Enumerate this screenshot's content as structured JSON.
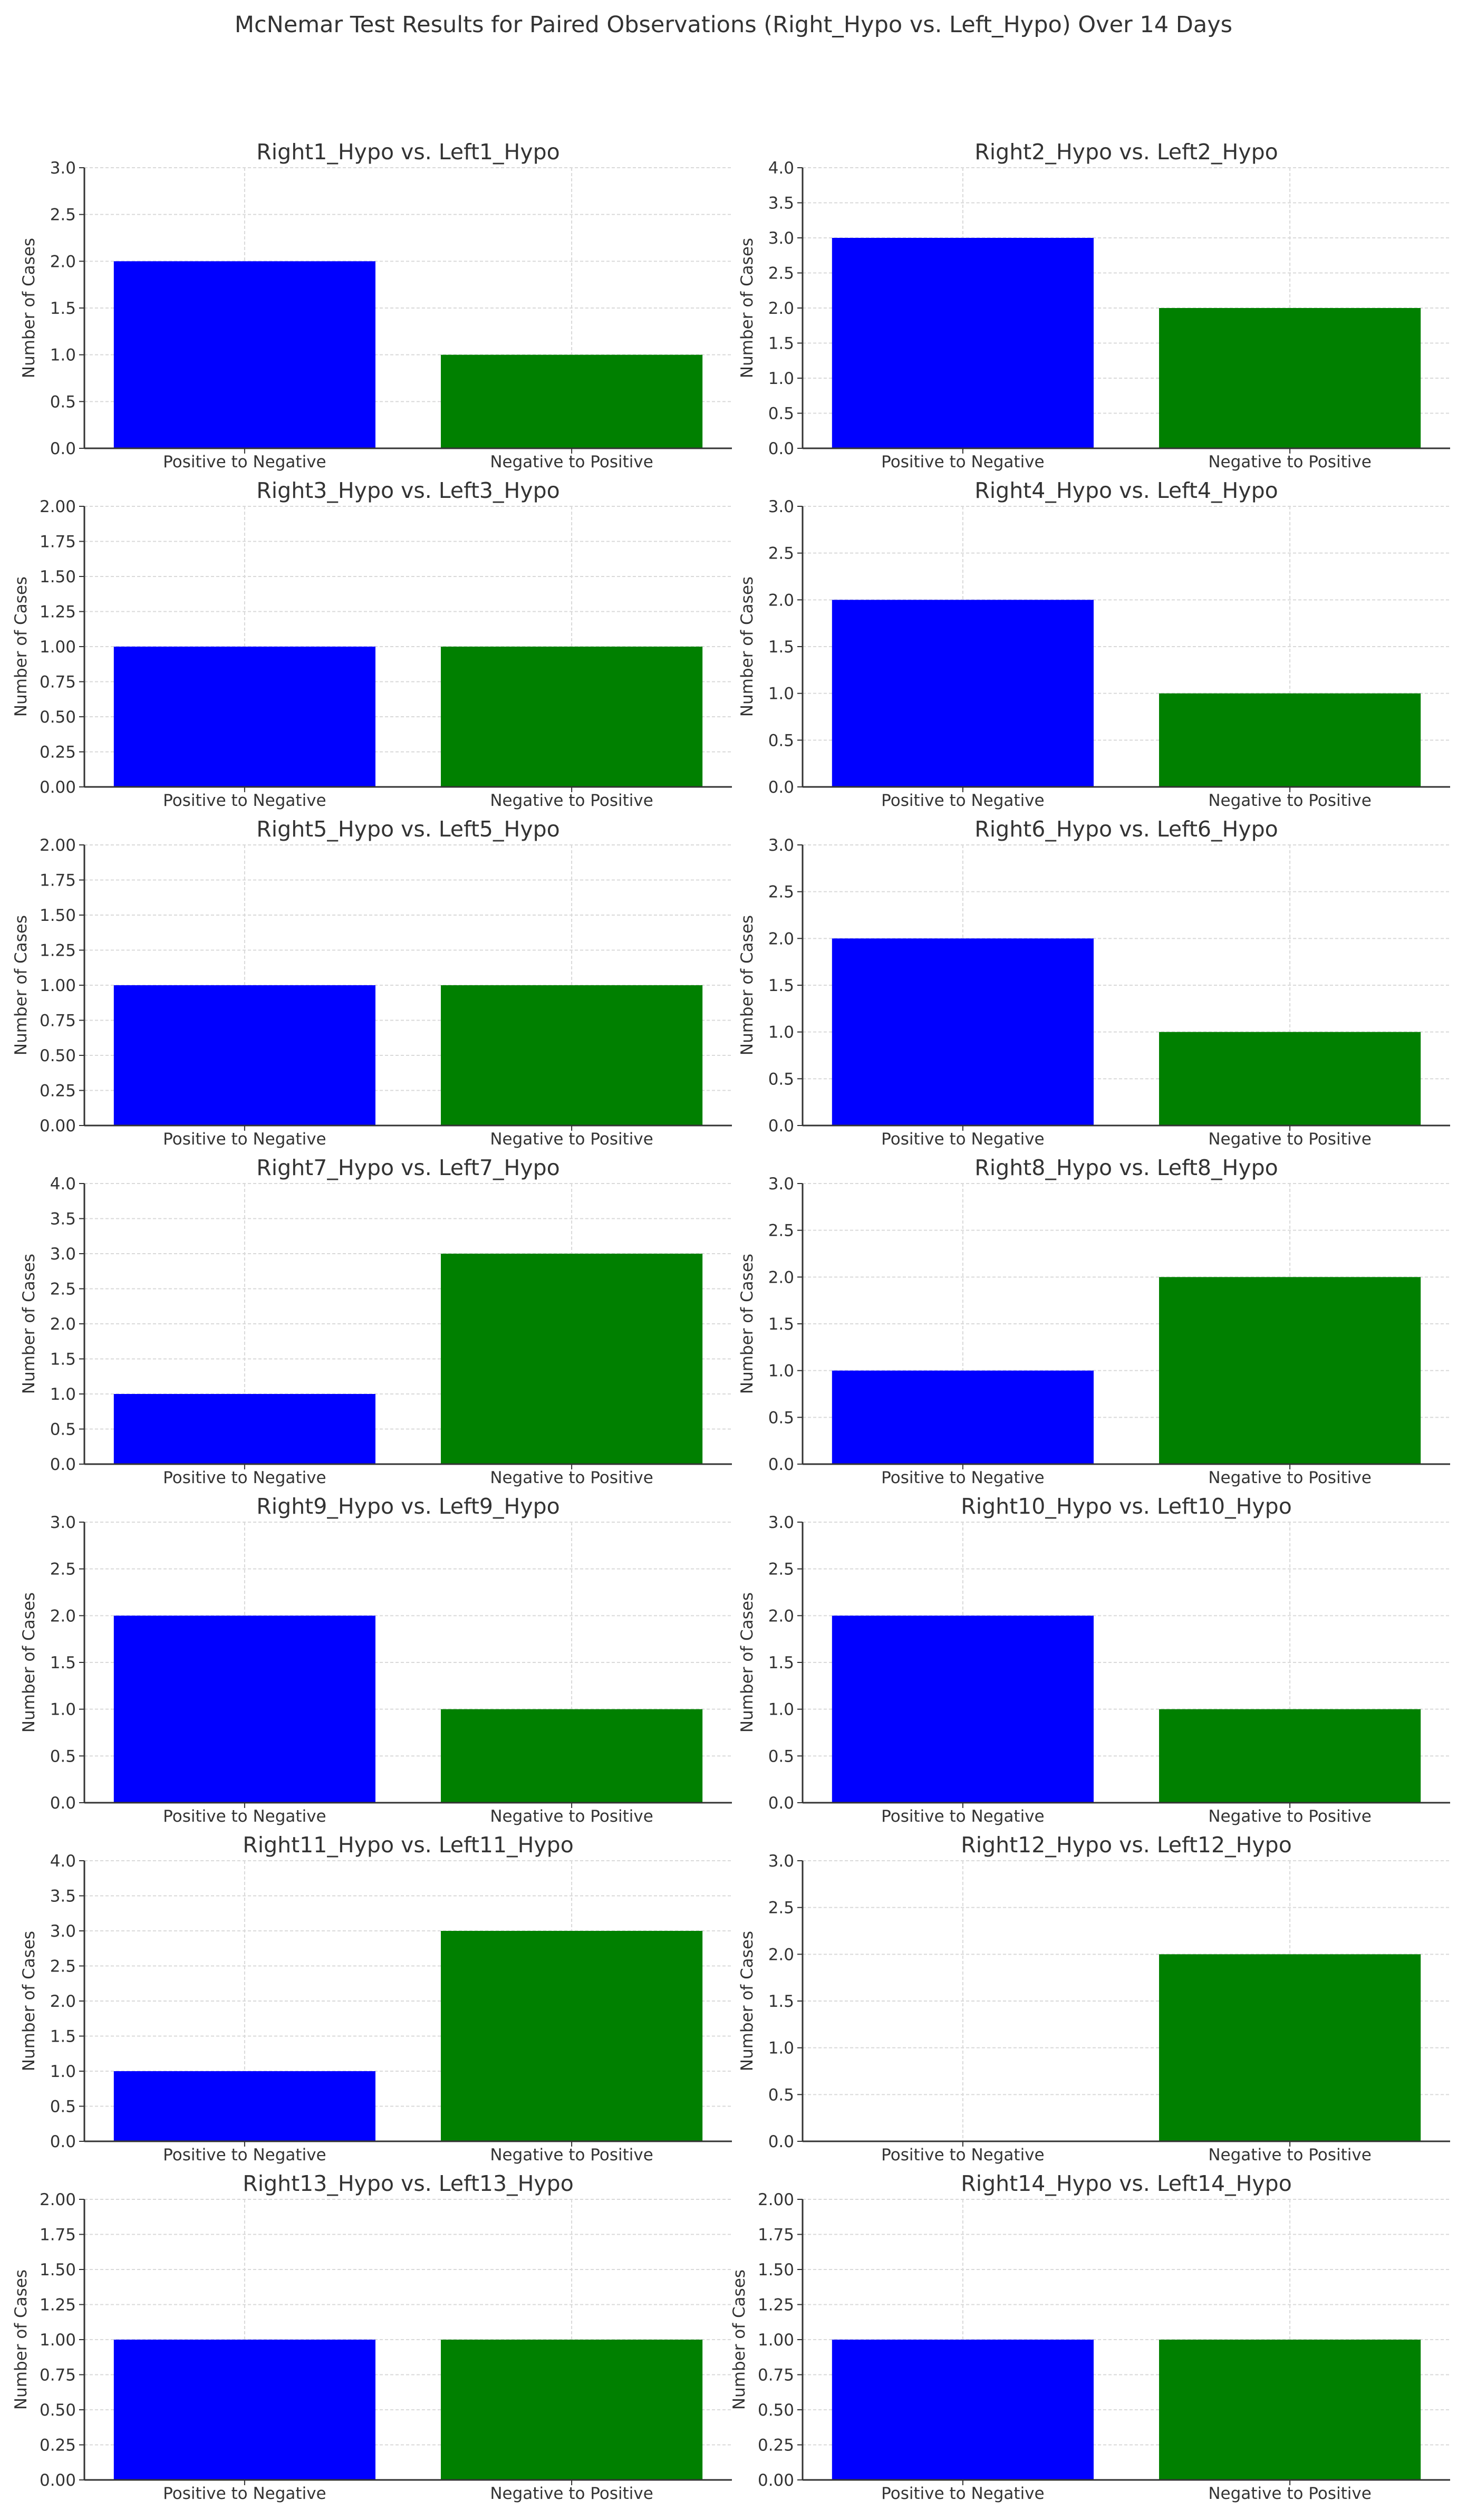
{
  "figure": {
    "title": "McNemar Test Results for Paired Observations (Right_Hypo vs. Left_Hypo) Over 14 Days"
  },
  "style": {
    "bar_colors": [
      "#0000ff",
      "#008000"
    ],
    "axis_color": "#333333",
    "grid_color": "#d9d9d9"
  },
  "chart_data": [
    {
      "type": "bar",
      "title": "Right1_Hypo vs. Left1_Hypo",
      "ylabel": "Number of Cases",
      "categories": [
        "Positive to Negative",
        "Negative to Positive"
      ],
      "values": [
        2,
        1
      ],
      "ylim": [
        0,
        3
      ],
      "yticks": [
        "0.0",
        "0.5",
        "1.0",
        "1.5",
        "2.0",
        "2.5",
        "3.0"
      ],
      "grid": true
    },
    {
      "type": "bar",
      "title": "Right2_Hypo vs. Left2_Hypo",
      "ylabel": "Number of Cases",
      "categories": [
        "Positive to Negative",
        "Negative to Positive"
      ],
      "values": [
        3,
        2
      ],
      "ylim": [
        0,
        4
      ],
      "yticks": [
        "0.0",
        "0.5",
        "1.0",
        "1.5",
        "2.0",
        "2.5",
        "3.0",
        "3.5",
        "4.0"
      ],
      "grid": true
    },
    {
      "type": "bar",
      "title": "Right3_Hypo vs. Left3_Hypo",
      "ylabel": "Number of Cases",
      "categories": [
        "Positive to Negative",
        "Negative to Positive"
      ],
      "values": [
        1,
        1
      ],
      "ylim": [
        0,
        2
      ],
      "yticks": [
        "0.00",
        "0.25",
        "0.50",
        "0.75",
        "1.00",
        "1.25",
        "1.50",
        "1.75",
        "2.00"
      ],
      "grid": true
    },
    {
      "type": "bar",
      "title": "Right4_Hypo vs. Left4_Hypo",
      "ylabel": "Number of Cases",
      "categories": [
        "Positive to Negative",
        "Negative to Positive"
      ],
      "values": [
        2,
        1
      ],
      "ylim": [
        0,
        3
      ],
      "yticks": [
        "0.0",
        "0.5",
        "1.0",
        "1.5",
        "2.0",
        "2.5",
        "3.0"
      ],
      "grid": true
    },
    {
      "type": "bar",
      "title": "Right5_Hypo vs. Left5_Hypo",
      "ylabel": "Number of Cases",
      "categories": [
        "Positive to Negative",
        "Negative to Positive"
      ],
      "values": [
        1,
        1
      ],
      "ylim": [
        0,
        2
      ],
      "yticks": [
        "0.00",
        "0.25",
        "0.50",
        "0.75",
        "1.00",
        "1.25",
        "1.50",
        "1.75",
        "2.00"
      ],
      "grid": true
    },
    {
      "type": "bar",
      "title": "Right6_Hypo vs. Left6_Hypo",
      "ylabel": "Number of Cases",
      "categories": [
        "Positive to Negative",
        "Negative to Positive"
      ],
      "values": [
        2,
        1
      ],
      "ylim": [
        0,
        3
      ],
      "yticks": [
        "0.0",
        "0.5",
        "1.0",
        "1.5",
        "2.0",
        "2.5",
        "3.0"
      ],
      "grid": true
    },
    {
      "type": "bar",
      "title": "Right7_Hypo vs. Left7_Hypo",
      "ylabel": "Number of Cases",
      "categories": [
        "Positive to Negative",
        "Negative to Positive"
      ],
      "values": [
        1,
        3
      ],
      "ylim": [
        0,
        4
      ],
      "yticks": [
        "0.0",
        "0.5",
        "1.0",
        "1.5",
        "2.0",
        "2.5",
        "3.0",
        "3.5",
        "4.0"
      ],
      "grid": true
    },
    {
      "type": "bar",
      "title": "Right8_Hypo vs. Left8_Hypo",
      "ylabel": "Number of Cases",
      "categories": [
        "Positive to Negative",
        "Negative to Positive"
      ],
      "values": [
        1,
        2
      ],
      "ylim": [
        0,
        3
      ],
      "yticks": [
        "0.0",
        "0.5",
        "1.0",
        "1.5",
        "2.0",
        "2.5",
        "3.0"
      ],
      "grid": true
    },
    {
      "type": "bar",
      "title": "Right9_Hypo vs. Left9_Hypo",
      "ylabel": "Number of Cases",
      "categories": [
        "Positive to Negative",
        "Negative to Positive"
      ],
      "values": [
        2,
        1
      ],
      "ylim": [
        0,
        3
      ],
      "yticks": [
        "0.0",
        "0.5",
        "1.0",
        "1.5",
        "2.0",
        "2.5",
        "3.0"
      ],
      "grid": true
    },
    {
      "type": "bar",
      "title": "Right10_Hypo vs. Left10_Hypo",
      "ylabel": "Number of Cases",
      "categories": [
        "Positive to Negative",
        "Negative to Positive"
      ],
      "values": [
        2,
        1
      ],
      "ylim": [
        0,
        3
      ],
      "yticks": [
        "0.0",
        "0.5",
        "1.0",
        "1.5",
        "2.0",
        "2.5",
        "3.0"
      ],
      "grid": true
    },
    {
      "type": "bar",
      "title": "Right11_Hypo vs. Left11_Hypo",
      "ylabel": "Number of Cases",
      "categories": [
        "Positive to Negative",
        "Negative to Positive"
      ],
      "values": [
        1,
        3
      ],
      "ylim": [
        0,
        4
      ],
      "yticks": [
        "0.0",
        "0.5",
        "1.0",
        "1.5",
        "2.0",
        "2.5",
        "3.0",
        "3.5",
        "4.0"
      ],
      "grid": true
    },
    {
      "type": "bar",
      "title": "Right12_Hypo vs. Left12_Hypo",
      "ylabel": "Number of Cases",
      "categories": [
        "Positive to Negative",
        "Negative to Positive"
      ],
      "values": [
        0,
        2
      ],
      "ylim": [
        0,
        3
      ],
      "yticks": [
        "0.0",
        "0.5",
        "1.0",
        "1.5",
        "2.0",
        "2.5",
        "3.0"
      ],
      "grid": true
    },
    {
      "type": "bar",
      "title": "Right13_Hypo vs. Left13_Hypo",
      "ylabel": "Number of Cases",
      "categories": [
        "Positive to Negative",
        "Negative to Positive"
      ],
      "values": [
        1,
        1
      ],
      "ylim": [
        0,
        2
      ],
      "yticks": [
        "0.00",
        "0.25",
        "0.50",
        "0.75",
        "1.00",
        "1.25",
        "1.50",
        "1.75",
        "2.00"
      ],
      "grid": true
    },
    {
      "type": "bar",
      "title": "Right14_Hypo vs. Left14_Hypo",
      "ylabel": "Number of Cases",
      "categories": [
        "Positive to Negative",
        "Negative to Positive"
      ],
      "values": [
        1,
        1
      ],
      "ylim": [
        0,
        2
      ],
      "yticks": [
        "0.00",
        "0.25",
        "0.50",
        "0.75",
        "1.00",
        "1.25",
        "1.50",
        "1.75",
        "2.00"
      ],
      "grid": true
    }
  ]
}
